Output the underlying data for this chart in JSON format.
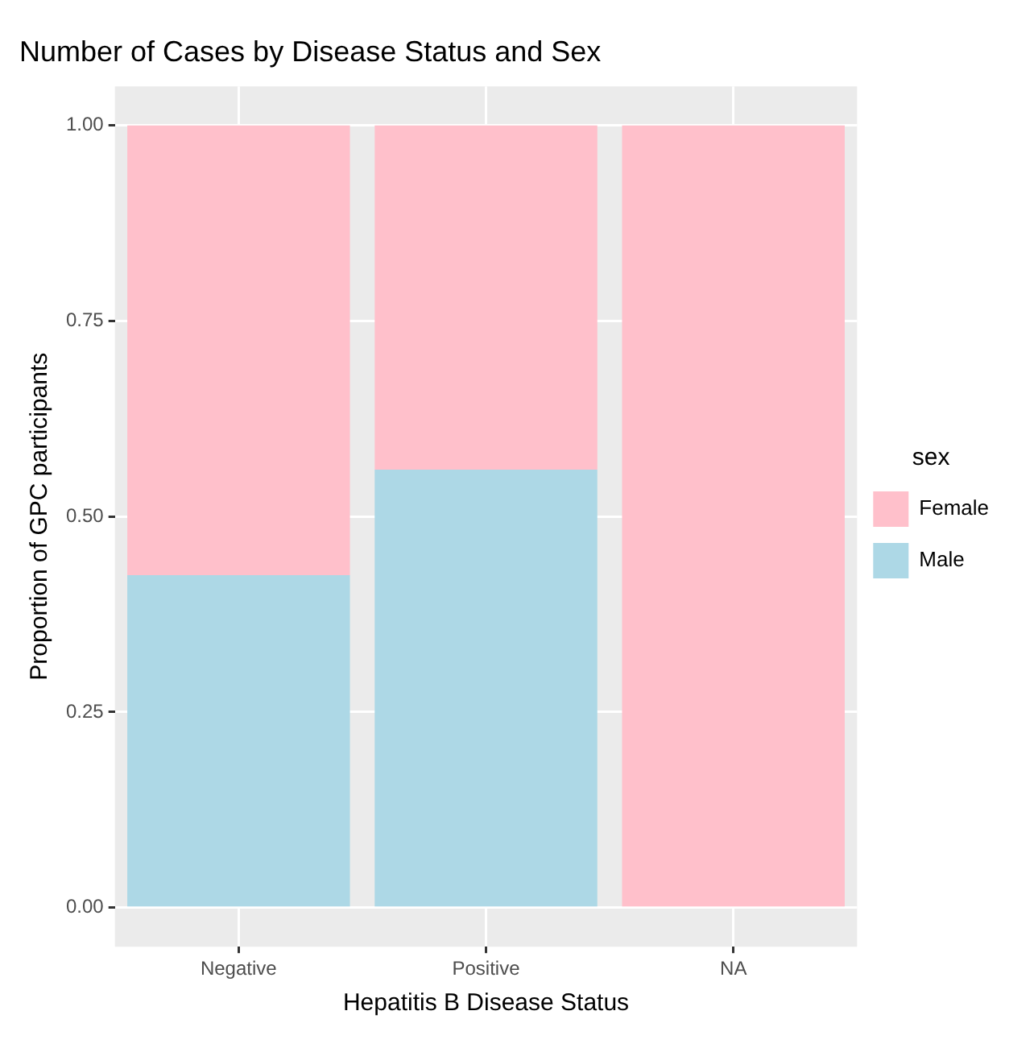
{
  "chart_data": {
    "type": "bar",
    "title": "Number of Cases by Disease Status and Sex",
    "xlabel": "Hepatitis B Disease Status",
    "ylabel": "Proportion of GPC participants",
    "legend_title": "sex",
    "categories": [
      "Negative",
      "Positive",
      "NA"
    ],
    "stacked": true,
    "series": [
      {
        "name": "Male",
        "color": "#add8e6",
        "values": [
          0.425,
          0.56,
          0
        ]
      },
      {
        "name": "Female",
        "color": "#ffc0cb",
        "values": [
          0.575,
          0.44,
          1
        ]
      }
    ],
    "ylim": [
      -0.05,
      1.05
    ],
    "yticks": [
      {
        "value": 0,
        "label": "0.00"
      },
      {
        "value": 0.25,
        "label": "0.25"
      },
      {
        "value": 0.5,
        "label": "0.50"
      },
      {
        "value": 0.75,
        "label": "0.75"
      },
      {
        "value": 1,
        "label": "1.00"
      }
    ],
    "grid": true,
    "legend": "right"
  }
}
